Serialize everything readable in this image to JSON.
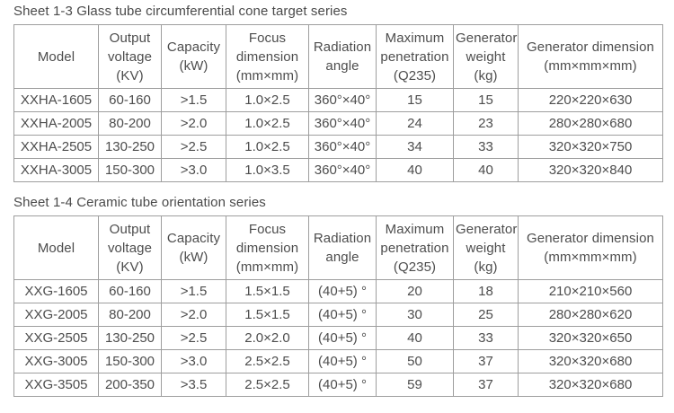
{
  "page": {
    "background_color": "#ffffff",
    "text_color": "#4d4d4d",
    "border_color": "#9e9e9e"
  },
  "tables": [
    {
      "title": "Sheet 1-3 Glass tube circumferential cone target series",
      "columns": [
        "Model",
        "Output\nvoltage\n(KV)",
        "Capacity\n(kW)",
        "Focus\ndimension\n(mm×mm)",
        "Radiation\nangle",
        "Maximum\npenetration\n(Q235)",
        "Generator\nweight\n(kg)",
        "Generator dimension\n(mm×mm×mm)"
      ],
      "rows": [
        [
          "XXHA-1605",
          "60-160",
          ">1.5",
          "1.0×2.5",
          "360°×40°",
          "15",
          "15",
          "220×220×630"
        ],
        [
          "XXHA-2005",
          "80-200",
          ">2.0",
          "1.0×2.5",
          "360°×40°",
          "24",
          "23",
          "280×280×680"
        ],
        [
          "XXHA-2505",
          "130-250",
          ">2.5",
          "1.0×2.5",
          "360°×40°",
          "34",
          "33",
          "320×320×750"
        ],
        [
          "XXHA-3005",
          "150-300",
          ">3.0",
          "1.0×3.5",
          "360°×40°",
          "40",
          "40",
          "320×320×840"
        ]
      ]
    },
    {
      "title": "Sheet 1-4 Ceramic tube orientation series",
      "columns": [
        "Model",
        "Output\nvoltage\n(KV)",
        "Capacity\n(kW)",
        "Focus\ndimension\n(mm×mm)",
        "Radiation\nangle",
        "Maximum\npenetration\n(Q235)",
        "Generator\nweight\n(kg)",
        "Generator dimension\n(mm×mm×mm)"
      ],
      "rows": [
        [
          "XXG-1605",
          "60-160",
          ">1.5",
          "1.5×1.5",
          "(40+5) °",
          "20",
          "18",
          "210×210×560"
        ],
        [
          "XXG-2005",
          "80-200",
          ">2.0",
          "1.5×1.5",
          "(40+5) °",
          "30",
          "25",
          "280×280×620"
        ],
        [
          "XXG-2505",
          "130-250",
          ">2.5",
          "2.0×2.0",
          "(40+5) °",
          "40",
          "33",
          "320×320×650"
        ],
        [
          "XXG-3005",
          "150-300",
          ">3.0",
          "2.5×2.5",
          "(40+5) °",
          "50",
          "37",
          "320×320×680"
        ],
        [
          "XXG-3505",
          "200-350",
          ">3.5",
          "2.5×2.5",
          "(40+5) °",
          "59",
          "37",
          "320×320×680"
        ]
      ]
    }
  ]
}
